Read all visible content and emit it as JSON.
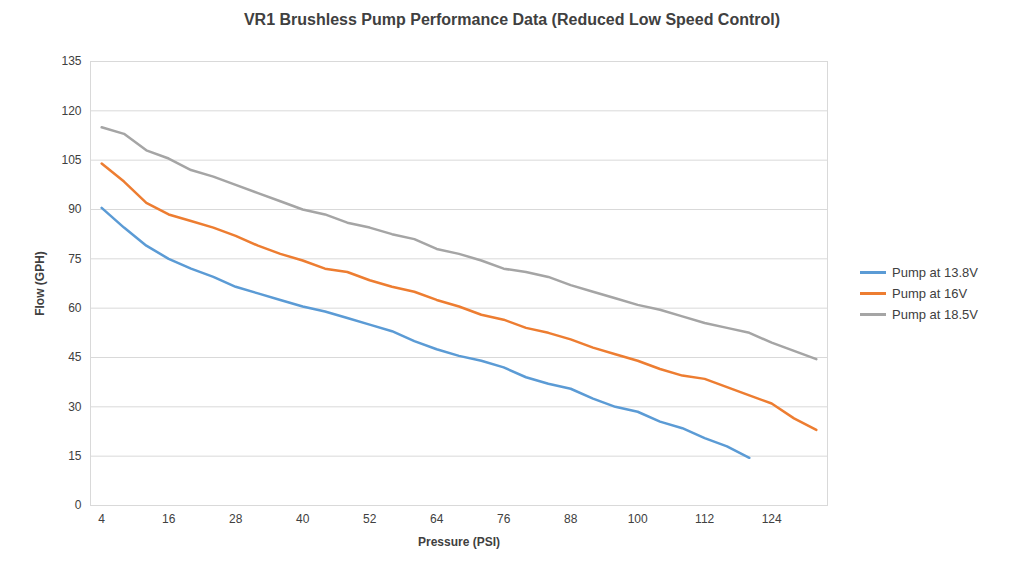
{
  "chart_data": {
    "type": "line",
    "title": "VR1 Brushless Pump Performance Data (Reduced Low Speed Control)",
    "x_label": "Pressure (PSI)",
    "y_label": "Flow (GPH)",
    "x": [
      4,
      8,
      12,
      16,
      20,
      24,
      28,
      32,
      36,
      40,
      44,
      48,
      52,
      56,
      60,
      64,
      68,
      72,
      76,
      80,
      84,
      88,
      92,
      96,
      100,
      104,
      108,
      112,
      116,
      120,
      124,
      128,
      132
    ],
    "series": [
      {
        "name": "Pump at 13.8V",
        "color": "#5b9bd5",
        "values": [
          90.5,
          84.5,
          79,
          75,
          72,
          69.5,
          66.5,
          64.5,
          62.5,
          60.5,
          59,
          57,
          55,
          53,
          50,
          47.5,
          45.5,
          44,
          42,
          39,
          37,
          35.5,
          32.5,
          30,
          28.5,
          25.5,
          23.5,
          20.5,
          18,
          14.5,
          null,
          null,
          null
        ]
      },
      {
        "name": "Pump at 16V",
        "color": "#ed7d31",
        "values": [
          104,
          98.5,
          92,
          88.5,
          86.5,
          84.5,
          82,
          79,
          76.5,
          74.5,
          72,
          71,
          68.5,
          66.5,
          65,
          62.5,
          60.5,
          58,
          56.5,
          54,
          52.5,
          50.5,
          48,
          46,
          44,
          41.5,
          39.5,
          38.5,
          36,
          33.5,
          31,
          26.5,
          23
        ]
      },
      {
        "name": "Pump at 18.5V",
        "color": "#a5a5a5",
        "values": [
          115,
          113,
          108,
          105.5,
          102,
          100,
          97.5,
          95,
          92.5,
          90,
          88.5,
          86,
          84.5,
          82.5,
          81,
          78,
          76.5,
          74.5,
          72,
          71,
          69.5,
          67,
          65,
          63,
          61,
          59.5,
          57.5,
          55.5,
          54,
          52.5,
          49.5,
          47,
          44.5
        ]
      }
    ],
    "xlim": [
      2,
      134
    ],
    "xticks": [
      4,
      16,
      28,
      40,
      52,
      64,
      76,
      88,
      100,
      112,
      124
    ],
    "ylim": [
      0,
      135
    ],
    "yticks": [
      0,
      15,
      30,
      45,
      60,
      75,
      90,
      105,
      120,
      135
    ],
    "grid": true,
    "legend": "right"
  }
}
